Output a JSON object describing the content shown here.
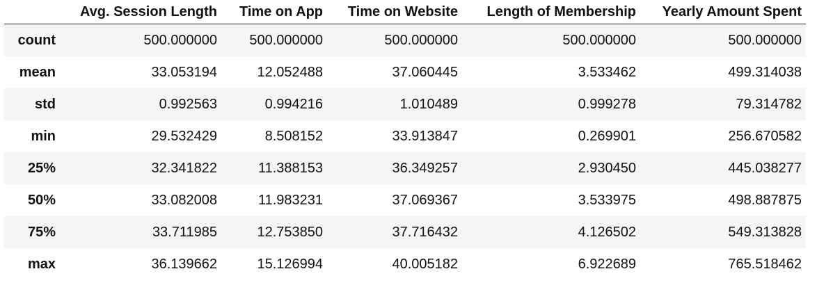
{
  "table": {
    "index_header": "",
    "columns": [
      "Avg. Session Length",
      "Time on App",
      "Time on Website",
      "Length of Membership",
      "Yearly Amount Spent"
    ],
    "rows": [
      {
        "label": "count",
        "values": [
          "500.000000",
          "500.000000",
          "500.000000",
          "500.000000",
          "500.000000"
        ]
      },
      {
        "label": "mean",
        "values": [
          "33.053194",
          "12.052488",
          "37.060445",
          "3.533462",
          "499.314038"
        ]
      },
      {
        "label": "std",
        "values": [
          "0.992563",
          "0.994216",
          "1.010489",
          "0.999278",
          "79.314782"
        ]
      },
      {
        "label": "min",
        "values": [
          "29.532429",
          "8.508152",
          "33.913847",
          "0.269901",
          "256.670582"
        ]
      },
      {
        "label": "25%",
        "values": [
          "32.341822",
          "11.388153",
          "36.349257",
          "2.930450",
          "445.038277"
        ]
      },
      {
        "label": "50%",
        "values": [
          "33.082008",
          "11.983231",
          "37.069367",
          "3.533975",
          "498.887875"
        ]
      },
      {
        "label": "75%",
        "values": [
          "33.711985",
          "12.753850",
          "37.716432",
          "4.126502",
          "549.313828"
        ]
      },
      {
        "label": "max",
        "values": [
          "36.139662",
          "15.126994",
          "40.005182",
          "6.922689",
          "765.518462"
        ]
      }
    ]
  },
  "colors": {
    "stripe": "#f5f5f5",
    "header_rule": "#222222",
    "text": "#111111"
  }
}
